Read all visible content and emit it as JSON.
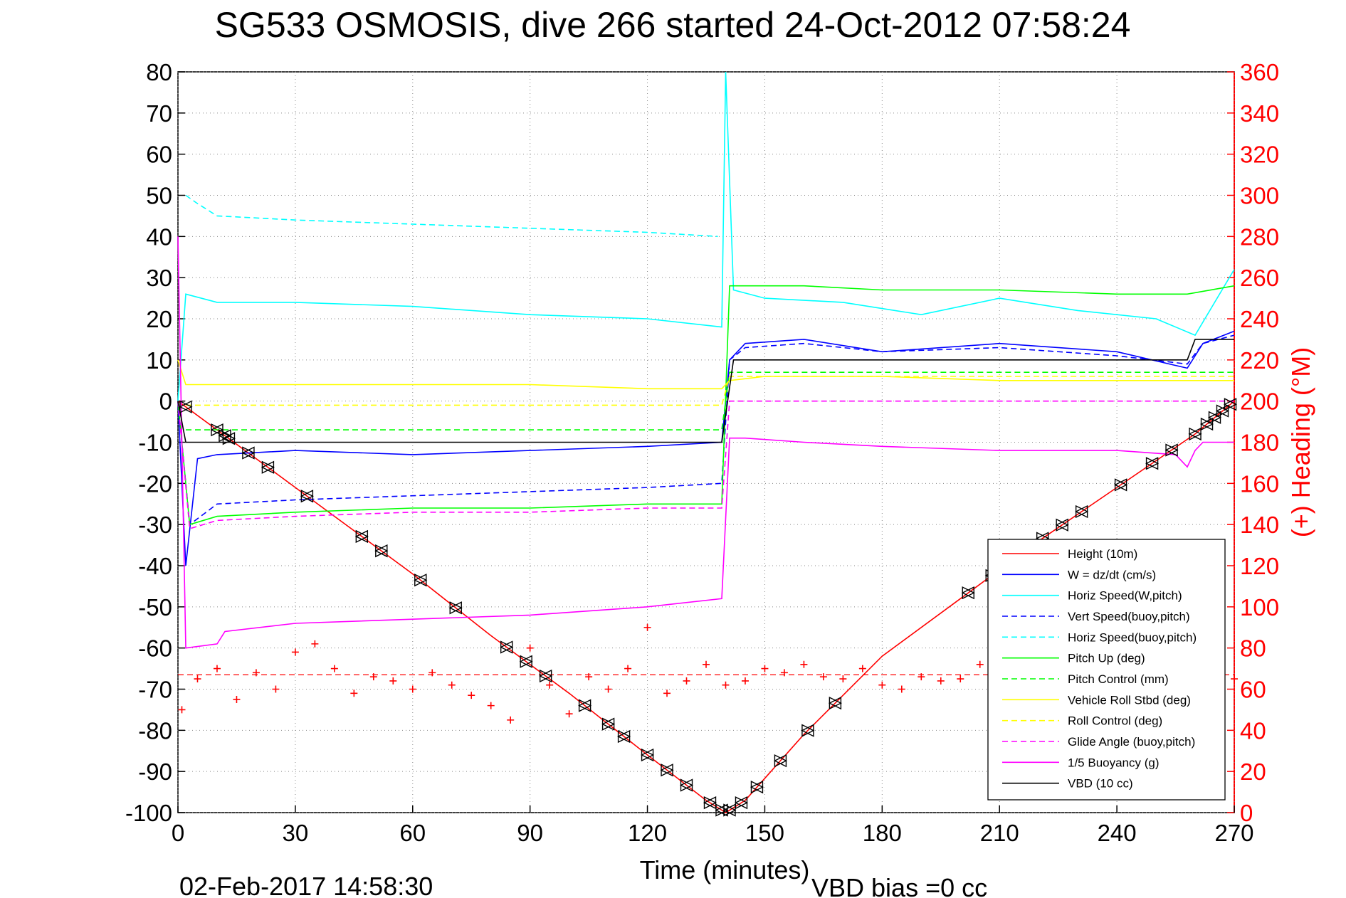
{
  "title": "SG533 OSMOSIS, dive 266 started 24-Oct-2012 07:58:24",
  "footer": {
    "timestamp": "02-Feb-2017 14:58:30",
    "vbd_bias": "VBD bias =0 cc"
  },
  "chart_data": {
    "type": "line",
    "xlabel": "Time (minutes)",
    "ylabel": "",
    "y2label": "(+) Heading (°M)",
    "xlim": [
      0,
      270
    ],
    "ylim": [
      -100,
      80
    ],
    "y2lim": [
      0,
      360
    ],
    "grid": true,
    "legend_position": "bottom-right",
    "x_ticks": [
      "0",
      "30",
      "60",
      "90",
      "120",
      "150",
      "180",
      "210",
      "240",
      "270"
    ],
    "y_ticks": [
      "80",
      "70",
      "60",
      "50",
      "40",
      "30",
      "20",
      "10",
      "0",
      "-10",
      "-20",
      "-30",
      "-40",
      "-50",
      "-60",
      "-70",
      "-80",
      "-90",
      "-100"
    ],
    "y2_ticks": [
      "360",
      "340",
      "320",
      "300",
      "280",
      "260",
      "240",
      "220",
      "200",
      "180",
      "160",
      "140",
      "120",
      "100",
      "80",
      "60",
      "40",
      "20",
      "0"
    ],
    "series": [
      {
        "name": "Height (10m)",
        "color": "#ff0000",
        "style": "solid",
        "x": [
          0,
          20,
          40,
          60,
          80,
          100,
          120,
          135,
          140,
          145,
          160,
          180,
          200,
          220,
          240,
          260,
          270
        ],
        "y": [
          0,
          -14,
          -28,
          -42,
          -57,
          -71,
          -86,
          -97,
          -100,
          -97,
          -81,
          -62,
          -48,
          -34,
          -21,
          -8,
          0
        ]
      },
      {
        "name": "W = dz/dt (cm/s)",
        "color": "#0000ff",
        "style": "solid",
        "x": [
          0,
          2,
          5,
          10,
          30,
          60,
          90,
          120,
          139,
          141,
          145,
          160,
          180,
          210,
          240,
          258,
          262,
          270
        ],
        "y": [
          0,
          -40,
          -14,
          -13,
          -12,
          -13,
          -12,
          -11,
          -10,
          10,
          14,
          15,
          12,
          14,
          12,
          8,
          14,
          17
        ]
      },
      {
        "name": "Horiz Speed(W,pitch)",
        "color": "#00ffff",
        "style": "solid",
        "x": [
          0,
          2,
          10,
          30,
          60,
          90,
          120,
          139,
          140,
          142,
          150,
          170,
          190,
          210,
          230,
          250,
          260,
          270
        ],
        "y": [
          0,
          26,
          24,
          24,
          23,
          21,
          20,
          18,
          80,
          27,
          25,
          24,
          21,
          25,
          22,
          20,
          16,
          32
        ]
      },
      {
        "name": "Vert Speed(buoy,pitch)",
        "color": "#0000ff",
        "style": "dashed",
        "x": [
          0,
          3,
          10,
          30,
          60,
          90,
          120,
          139,
          141,
          145,
          160,
          180,
          210,
          240,
          258,
          262,
          270
        ],
        "y": [
          0,
          -30,
          -25,
          -24,
          -23,
          -22,
          -21,
          -20,
          10,
          13,
          14,
          12,
          13,
          11,
          9,
          14,
          16
        ]
      },
      {
        "name": "Horiz Speed(buoy,pitch)",
        "color": "#00ffff",
        "style": "dashed",
        "x": [
          2,
          5,
          10,
          30,
          60,
          90,
          120,
          138
        ],
        "y": [
          50,
          48,
          45,
          44,
          43,
          42,
          41,
          40
        ]
      },
      {
        "name": "Pitch Up (deg)",
        "color": "#00ff00",
        "style": "solid",
        "x": [
          0,
          3,
          10,
          30,
          60,
          90,
          120,
          139,
          141,
          145,
          160,
          180,
          210,
          240,
          258,
          270
        ],
        "y": [
          0,
          -30,
          -28,
          -27,
          -26,
          -26,
          -25,
          -25,
          28,
          28,
          28,
          27,
          27,
          26,
          26,
          28
        ]
      },
      {
        "name": "Pitch Control (mm)",
        "color": "#00ff00",
        "style": "dashed",
        "x": [
          2,
          10,
          30,
          60,
          90,
          120,
          139,
          141,
          150,
          180,
          210,
          240,
          270
        ],
        "y": [
          -7,
          -7,
          -7,
          -7,
          -7,
          -7,
          -7,
          7,
          7,
          7,
          7,
          7,
          7
        ]
      },
      {
        "name": "Vehicle Roll Stbd (deg)",
        "color": "#ffff00",
        "style": "solid",
        "x": [
          0,
          2,
          10,
          30,
          60,
          90,
          120,
          139,
          141,
          150,
          180,
          210,
          240,
          270
        ],
        "y": [
          10,
          4,
          4,
          4,
          4,
          4,
          3,
          3,
          5,
          6,
          6,
          5,
          5,
          5
        ]
      },
      {
        "name": "Roll Control (deg)",
        "color": "#ffff00",
        "style": "dashed",
        "x": [
          2,
          10,
          30,
          60,
          90,
          120,
          139,
          141,
          150,
          180,
          210,
          240,
          270
        ],
        "y": [
          -1,
          -1,
          -1,
          -1,
          -1,
          -1,
          -1,
          6,
          6,
          6,
          6,
          6,
          6
        ]
      },
      {
        "name": "Glide Angle (buoy,pitch)",
        "color": "#ff00ff",
        "style": "dashed",
        "x": [
          0,
          3,
          10,
          30,
          60,
          90,
          120,
          139,
          141,
          150,
          180,
          210,
          240,
          270
        ],
        "y": [
          0,
          -31,
          -29,
          -28,
          -27,
          -27,
          -26,
          -26,
          0,
          0,
          0,
          0,
          0,
          0
        ]
      },
      {
        "name": "1/5 Buoyancy (g)",
        "color": "#ff00ff",
        "style": "solid",
        "x": [
          0,
          2,
          10,
          12,
          30,
          60,
          90,
          120,
          139,
          141,
          145,
          160,
          180,
          210,
          240,
          255,
          258,
          260,
          262,
          270
        ],
        "y": [
          40,
          -60,
          -59,
          -56,
          -54,
          -53,
          -52,
          -50,
          -48,
          -9,
          -9,
          -10,
          -11,
          -12,
          -12,
          -13,
          -16,
          -12,
          -10,
          -10
        ]
      },
      {
        "name": "VBD (10 cc)",
        "color": "#000000",
        "style": "solid",
        "x": [
          0,
          2,
          10,
          30,
          60,
          90,
          120,
          139,
          142,
          150,
          180,
          210,
          240,
          258,
          260,
          265,
          270
        ],
        "y": [
          0,
          -10,
          -10,
          -10,
          -10,
          -10,
          -10,
          -10,
          10,
          10,
          10,
          10,
          10,
          10,
          15,
          15,
          15
        ]
      }
    ],
    "heading": {
      "color": "#ff0000",
      "marker": "+",
      "axis": "right",
      "mean": 67,
      "x": [
        1,
        5,
        10,
        15,
        20,
        25,
        30,
        35,
        40,
        45,
        50,
        55,
        60,
        65,
        70,
        75,
        80,
        85,
        90,
        95,
        100,
        105,
        110,
        115,
        120,
        125,
        130,
        135,
        140,
        145,
        150,
        155,
        160,
        165,
        170,
        175,
        180,
        185,
        190,
        195,
        200,
        205,
        210,
        215,
        220,
        225,
        230,
        235,
        240,
        245,
        250,
        255,
        260,
        265,
        270
      ],
      "y": [
        50,
        65,
        70,
        55,
        68,
        60,
        78,
        82,
        70,
        58,
        66,
        64,
        60,
        68,
        62,
        57,
        52,
        45,
        80,
        62,
        48,
        66,
        60,
        70,
        90,
        58,
        64,
        72,
        62,
        64,
        70,
        68,
        72,
        66,
        65,
        70,
        62,
        60,
        66,
        64,
        65,
        72,
        76,
        70,
        66,
        63,
        71,
        67,
        64,
        69,
        60,
        73,
        66,
        72,
        65
      ]
    },
    "markers": {
      "symbol": "triangle-pair",
      "x": [
        2,
        10,
        12,
        13,
        18,
        23,
        33,
        47,
        52,
        62,
        71,
        84,
        89,
        94,
        104,
        110,
        114,
        120,
        125,
        130,
        136,
        139,
        141,
        144,
        148,
        154,
        161,
        168,
        202,
        208,
        221,
        226,
        231,
        241,
        249,
        254,
        260,
        263,
        265,
        267,
        269
      ]
    }
  }
}
